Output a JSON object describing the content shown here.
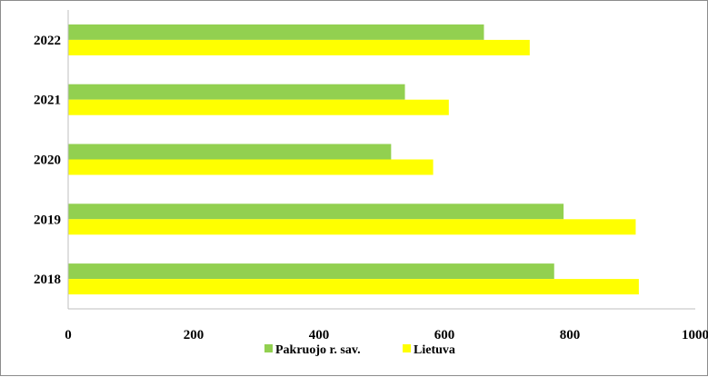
{
  "chart_data": {
    "type": "bar",
    "orientation": "horizontal",
    "categories": [
      "2018",
      "2019",
      "2020",
      "2021",
      "2022"
    ],
    "series": [
      {
        "name": "Pakruojo r. sav.",
        "color": "#92d050",
        "values": [
          775,
          790,
          515,
          537,
          663
        ]
      },
      {
        "name": "Lietuva",
        "color": "#ffff00",
        "values": [
          910,
          905,
          582,
          607,
          736
        ]
      }
    ],
    "xlim": [
      0,
      1000
    ],
    "x_ticks": [
      "0",
      "200",
      "400",
      "600",
      "800",
      "1000"
    ],
    "legend_position": "bottom",
    "grid": false
  }
}
